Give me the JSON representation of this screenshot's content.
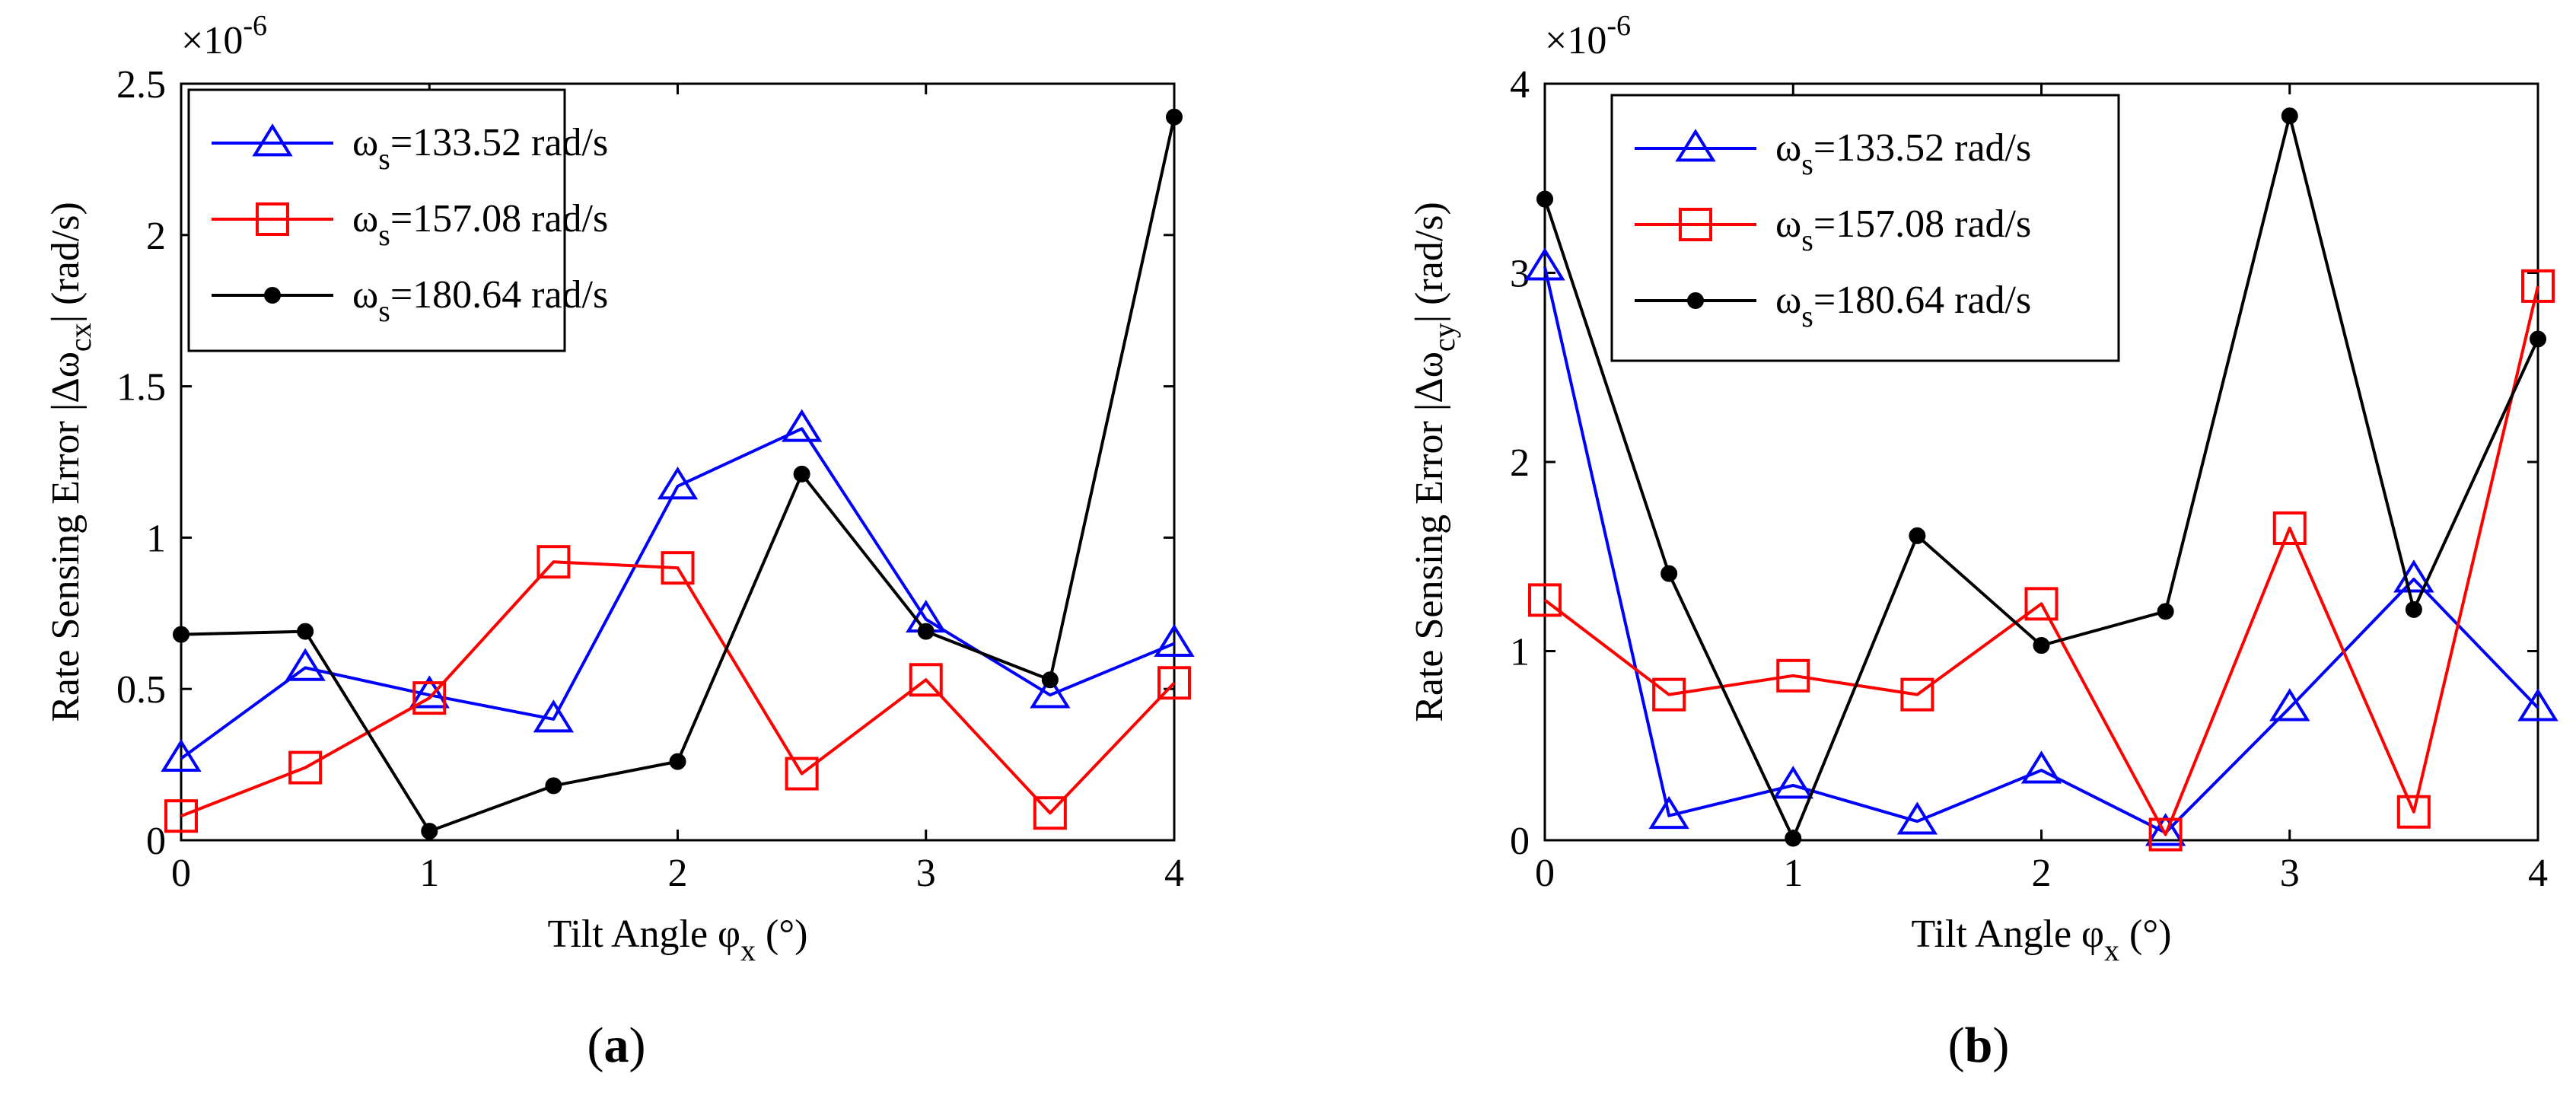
{
  "chart_data": [
    {
      "type": "line",
      "panel_label": "(a)",
      "panel_letter": "a",
      "exponent": "×10",
      "exponent_power": "-6",
      "ylabel": "Rate Sensing Error |Δω",
      "ylabel_sub": "cx",
      "ylabel_tail": "| (rad/s)",
      "xlabel": "Tilt Angle φ",
      "xlabel_sub": "x",
      "xlabel_tail": " (°)",
      "xlim": [
        0,
        4
      ],
      "ylim": [
        0,
        2.5
      ],
      "xticks": [
        0,
        1,
        2,
        3,
        4
      ],
      "xtick_labels": [
        "0",
        "1",
        "2",
        "3",
        "4"
      ],
      "yticks": [
        0,
        0.5,
        1,
        1.5,
        2,
        2.5
      ],
      "ytick_labels": [
        "0",
        "0.5",
        "1",
        "1.5",
        "2",
        "2.5"
      ],
      "x": [
        0,
        0.5,
        1,
        1.5,
        2,
        2.5,
        3,
        3.5,
        4
      ],
      "legend_position": "top-left",
      "series": [
        {
          "name": "ω",
          "name_sub": "s",
          "name_value": "=133.52 rad/s",
          "color": "#0000ff",
          "marker": "triangle",
          "values": [
            0.27,
            0.57,
            0.48,
            0.4,
            1.17,
            1.36,
            0.73,
            0.48,
            0.65
          ]
        },
        {
          "name": "ω",
          "name_sub": "s",
          "name_value": "=157.08 rad/s",
          "color": "#ff0000",
          "marker": "square",
          "values": [
            0.08,
            0.24,
            0.47,
            0.92,
            0.9,
            0.22,
            0.53,
            0.09,
            0.52
          ]
        },
        {
          "name": "ω",
          "name_sub": "s",
          "name_value": "=180.64 rad/s",
          "color": "#000000",
          "marker": "dot",
          "values": [
            0.68,
            0.69,
            0.03,
            0.18,
            0.26,
            1.21,
            0.69,
            0.53,
            2.39
          ]
        }
      ]
    },
    {
      "type": "line",
      "panel_label": "(b)",
      "panel_letter": "b",
      "exponent": "×10",
      "exponent_power": "-6",
      "ylabel": "Rate Sensing Error |Δω",
      "ylabel_sub": "cy",
      "ylabel_tail": "| (rad/s)",
      "xlabel": "Tilt Angle φ",
      "xlabel_sub": "x",
      "xlabel_tail": " (°)",
      "xlim": [
        0,
        4
      ],
      "ylim": [
        0,
        4
      ],
      "xticks": [
        0,
        1,
        2,
        3,
        4
      ],
      "xtick_labels": [
        "0",
        "1",
        "2",
        "3",
        "4"
      ],
      "yticks": [
        0,
        1,
        2,
        3,
        4
      ],
      "ytick_labels": [
        "0",
        "1",
        "2",
        "3",
        "4"
      ],
      "x": [
        0,
        0.5,
        1,
        1.5,
        2,
        2.5,
        3,
        3.5,
        4
      ],
      "legend_position": "top-left",
      "series": [
        {
          "name": "ω",
          "name_sub": "s",
          "name_value": "=133.52 rad/s",
          "color": "#0000ff",
          "marker": "triangle",
          "values": [
            3.03,
            0.13,
            0.29,
            0.1,
            0.37,
            0.04,
            0.7,
            1.38,
            0.7
          ]
        },
        {
          "name": "ω",
          "name_sub": "s",
          "name_value": "=157.08 rad/s",
          "color": "#ff0000",
          "marker": "square",
          "values": [
            1.27,
            0.77,
            0.87,
            0.77,
            1.25,
            0.03,
            1.65,
            0.15,
            2.93
          ]
        },
        {
          "name": "ω",
          "name_sub": "s",
          "name_value": "=180.64 rad/s",
          "color": "#000000",
          "marker": "dot",
          "values": [
            3.39,
            1.41,
            0.01,
            1.61,
            1.03,
            1.21,
            3.83,
            1.22,
            2.65
          ]
        }
      ]
    }
  ]
}
